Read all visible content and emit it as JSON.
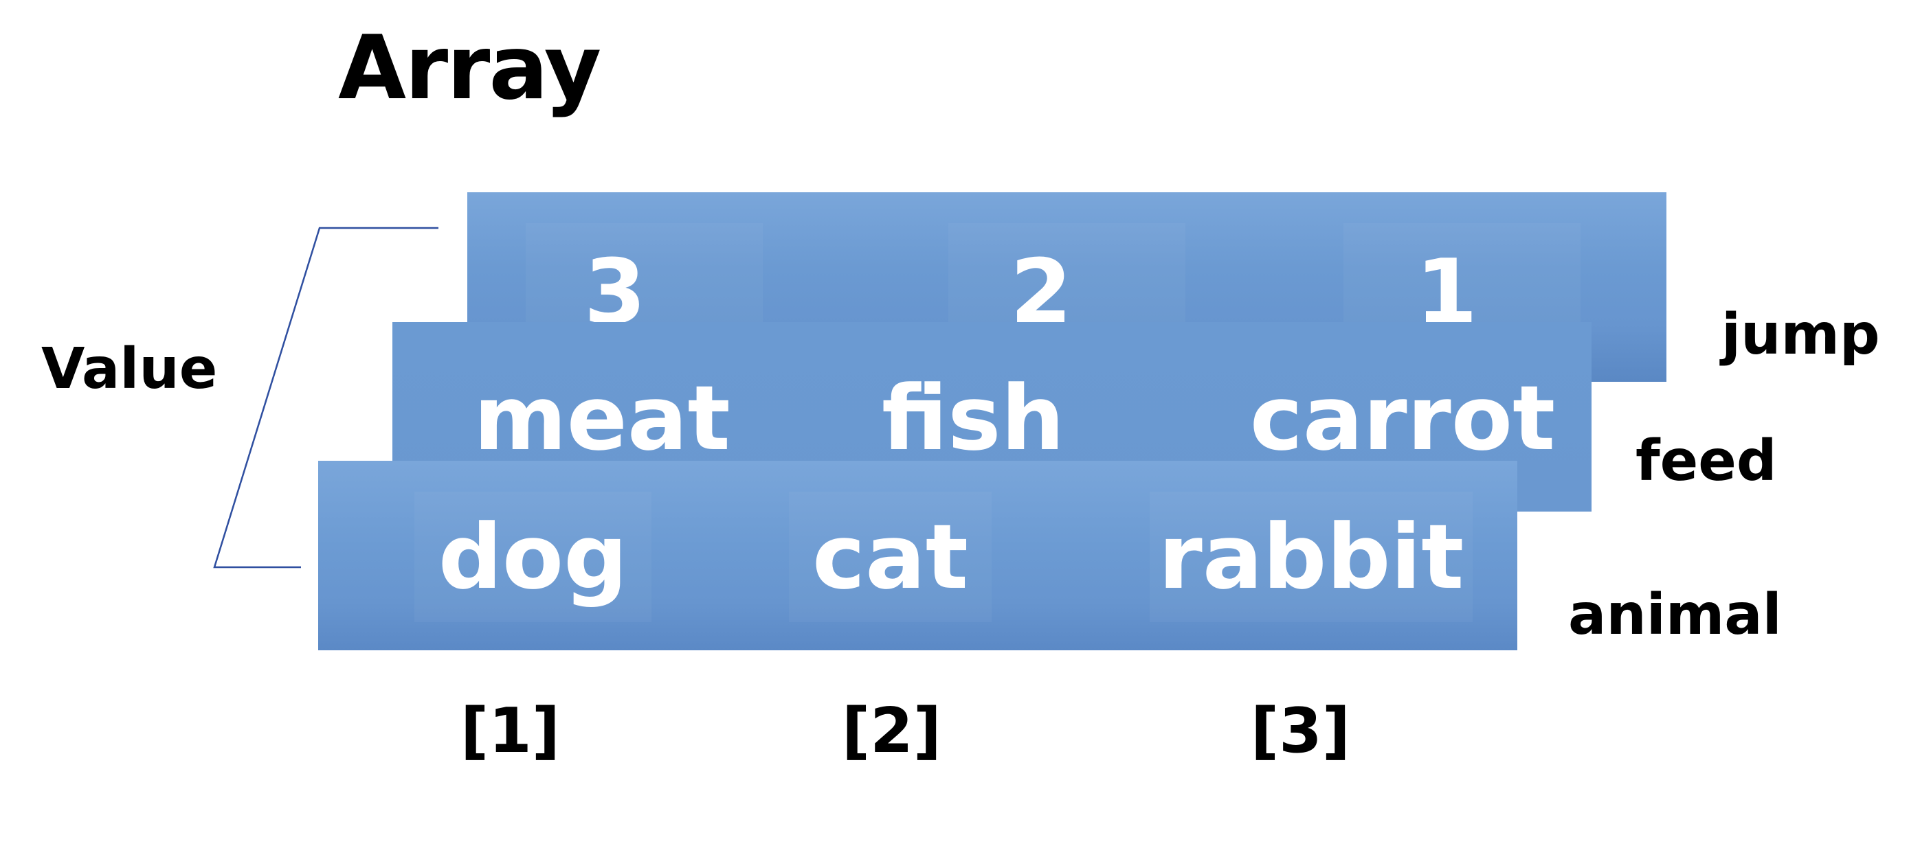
{
  "title": "Array",
  "value_label": "Value",
  "rows": {
    "jump": {
      "name": "jump",
      "values": [
        "3",
        "2",
        "1"
      ]
    },
    "feed": {
      "name": "feed",
      "values": [
        "meat",
        "fish",
        "carrot"
      ]
    },
    "animal": {
      "name": "animal",
      "values": [
        "dog",
        "cat",
        "rabbit"
      ]
    }
  },
  "indices": [
    "[1]",
    "[2]",
    "[3]"
  ],
  "colors": {
    "row_fill": "#6b9ad2",
    "cell_text": "#ffffff",
    "bracket_line": "#2f4fa0"
  }
}
